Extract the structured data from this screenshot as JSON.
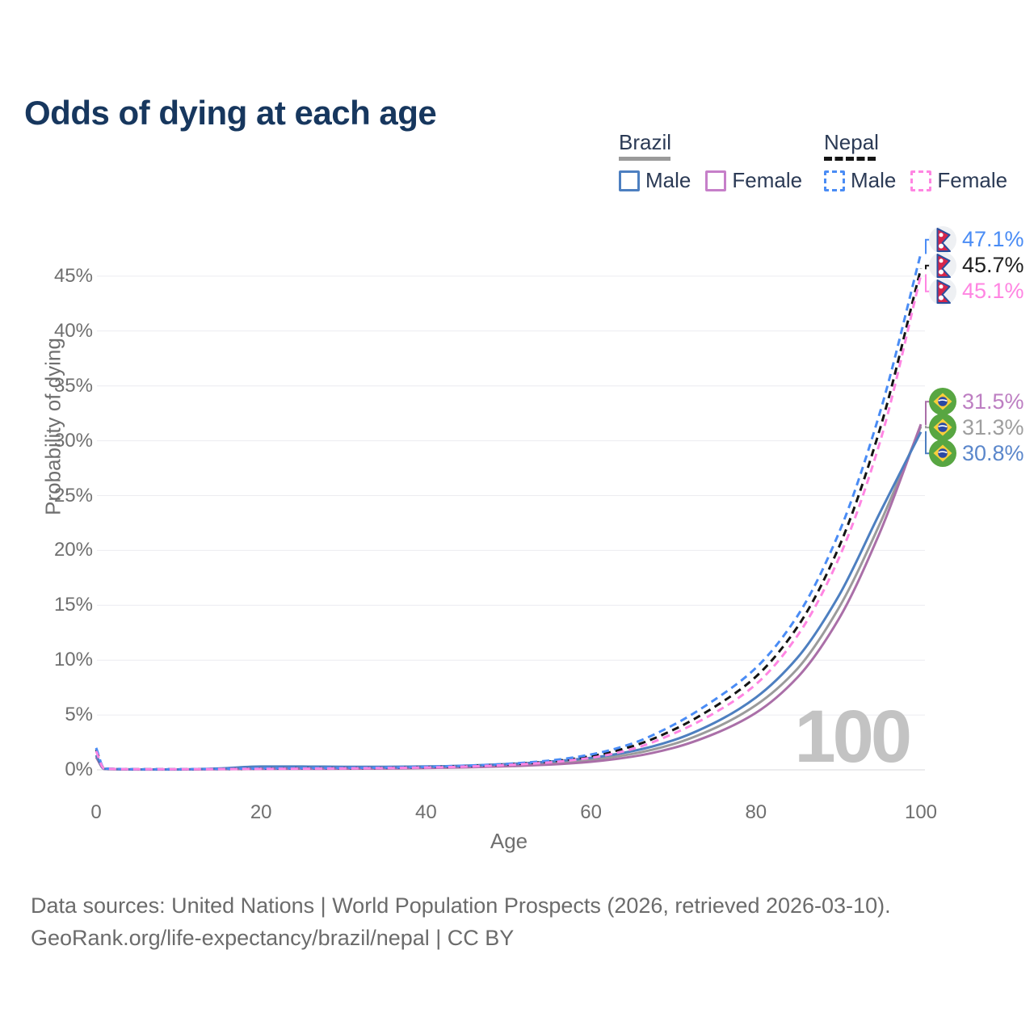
{
  "title": "Odds of dying at each age",
  "legend": {
    "groups": [
      {
        "title": "Brazil",
        "line_style": "solid",
        "underline_color": "#9a9a9a",
        "items": [
          {
            "label": "Male",
            "color": "#4d7fc0",
            "dashed": false
          },
          {
            "label": "Female",
            "color": "#c67fc9",
            "dashed": false
          }
        ]
      },
      {
        "title": "Nepal",
        "line_style": "dashed",
        "underline_color": "#141414",
        "items": [
          {
            "label": "Male",
            "color": "#4a8cf5",
            "dashed": true
          },
          {
            "label": "Female",
            "color": "#ff85e2",
            "dashed": true
          }
        ]
      }
    ]
  },
  "chart_data": {
    "type": "line",
    "title": "Odds of dying at each age",
    "xlabel": "Age",
    "ylabel": "Probability of dying",
    "xlim": [
      0,
      100
    ],
    "ylim_pct": [
      0,
      49
    ],
    "grid": "horizontal",
    "legend_position": "top-right",
    "watermark": "100",
    "xticks": [
      {
        "value": 0,
        "label": "0"
      },
      {
        "value": 20,
        "label": "20"
      },
      {
        "value": 40,
        "label": "40"
      },
      {
        "value": 60,
        "label": "60"
      },
      {
        "value": 80,
        "label": "80"
      },
      {
        "value": 100,
        "label": "100"
      }
    ],
    "yticks": [
      {
        "value": 0,
        "label": "0%"
      },
      {
        "value": 5,
        "label": "5%"
      },
      {
        "value": 10,
        "label": "10%"
      },
      {
        "value": 15,
        "label": "15%"
      },
      {
        "value": 20,
        "label": "20%"
      },
      {
        "value": 25,
        "label": "25%"
      },
      {
        "value": 30,
        "label": "30%"
      },
      {
        "value": 35,
        "label": "35%"
      },
      {
        "value": 40,
        "label": "40%"
      },
      {
        "value": 45,
        "label": "45%"
      }
    ],
    "series": [
      {
        "key": "brazil-total",
        "name": "Brazil",
        "flag": "brazil",
        "dashed": false,
        "color": "#9b9b9b",
        "label_color": "#9e9e9e",
        "end_label": "31.3%",
        "end_value_pct": 31.3,
        "points": [
          [
            0,
            1.25
          ],
          [
            1,
            0.08
          ],
          [
            5,
            0.035
          ],
          [
            10,
            0.035
          ],
          [
            15,
            0.09
          ],
          [
            20,
            0.19
          ],
          [
            25,
            0.19
          ],
          [
            30,
            0.18
          ],
          [
            35,
            0.19
          ],
          [
            40,
            0.23
          ],
          [
            45,
            0.3
          ],
          [
            50,
            0.42
          ],
          [
            55,
            0.61
          ],
          [
            60,
            0.92
          ],
          [
            65,
            1.45
          ],
          [
            70,
            2.35
          ],
          [
            75,
            3.8
          ],
          [
            80,
            5.9
          ],
          [
            85,
            9.2
          ],
          [
            90,
            14.7
          ],
          [
            95,
            22.4
          ],
          [
            100,
            31.3
          ]
        ]
      },
      {
        "key": "brazil-female",
        "name": "Brazil Female",
        "flag": "brazil",
        "dashed": false,
        "color": "#aa6fa8",
        "label_color": "#bd7ec2",
        "end_label": "31.5%",
        "end_value_pct": 31.5,
        "points": [
          [
            0,
            1.15
          ],
          [
            1,
            0.07
          ],
          [
            5,
            0.03
          ],
          [
            10,
            0.03
          ],
          [
            15,
            0.05
          ],
          [
            20,
            0.08
          ],
          [
            25,
            0.09
          ],
          [
            30,
            0.1
          ],
          [
            35,
            0.12
          ],
          [
            40,
            0.16
          ],
          [
            45,
            0.23
          ],
          [
            50,
            0.33
          ],
          [
            55,
            0.48
          ],
          [
            60,
            0.74
          ],
          [
            65,
            1.2
          ],
          [
            70,
            2.0
          ],
          [
            75,
            3.3
          ],
          [
            80,
            5.2
          ],
          [
            85,
            8.4
          ],
          [
            90,
            13.7
          ],
          [
            95,
            21.6
          ],
          [
            100,
            31.5
          ]
        ]
      },
      {
        "key": "brazil-male",
        "name": "Brazil Male",
        "flag": "brazil",
        "dashed": false,
        "color": "#4d7fc0",
        "label_color": "#5b87cb",
        "end_label": "30.8%",
        "end_value_pct": 30.8,
        "points": [
          [
            0,
            1.35
          ],
          [
            1,
            0.09
          ],
          [
            5,
            0.04
          ],
          [
            10,
            0.04
          ],
          [
            15,
            0.13
          ],
          [
            20,
            0.3
          ],
          [
            25,
            0.3
          ],
          [
            30,
            0.28
          ],
          [
            35,
            0.28
          ],
          [
            40,
            0.31
          ],
          [
            45,
            0.39
          ],
          [
            50,
            0.53
          ],
          [
            55,
            0.76
          ],
          [
            60,
            1.1
          ],
          [
            65,
            1.7
          ],
          [
            70,
            2.7
          ],
          [
            75,
            4.3
          ],
          [
            80,
            6.6
          ],
          [
            85,
            10.2
          ],
          [
            90,
            15.8
          ],
          [
            95,
            23.4
          ],
          [
            100,
            30.8
          ]
        ]
      },
      {
        "key": "nepal-total",
        "name": "Nepal",
        "flag": "nepal",
        "dashed": true,
        "color": "#141414",
        "label_color": "#1f1f1f",
        "end_label": "45.7%",
        "end_value_pct": 45.7,
        "points": [
          [
            0,
            1.85
          ],
          [
            1,
            0.11
          ],
          [
            5,
            0.055
          ],
          [
            10,
            0.055
          ],
          [
            15,
            0.08
          ],
          [
            20,
            0.11
          ],
          [
            25,
            0.13
          ],
          [
            30,
            0.15
          ],
          [
            35,
            0.18
          ],
          [
            40,
            0.24
          ],
          [
            45,
            0.34
          ],
          [
            50,
            0.5
          ],
          [
            55,
            0.76
          ],
          [
            60,
            1.25
          ],
          [
            65,
            2.15
          ],
          [
            70,
            3.65
          ],
          [
            75,
            5.75
          ],
          [
            80,
            8.5
          ],
          [
            85,
            13.0
          ],
          [
            90,
            20.2
          ],
          [
            95,
            31.0
          ],
          [
            100,
            45.7
          ]
        ]
      },
      {
        "key": "nepal-male",
        "name": "Nepal Male",
        "flag": "nepal",
        "dashed": true,
        "color": "#4a8cf5",
        "label_color": "#4a8cf5",
        "end_label": "47.1%",
        "end_value_pct": 47.1,
        "points": [
          [
            0,
            2.0
          ],
          [
            1,
            0.12
          ],
          [
            5,
            0.06
          ],
          [
            10,
            0.06
          ],
          [
            15,
            0.09
          ],
          [
            20,
            0.13
          ],
          [
            25,
            0.15
          ],
          [
            30,
            0.17
          ],
          [
            35,
            0.2
          ],
          [
            40,
            0.27
          ],
          [
            45,
            0.38
          ],
          [
            50,
            0.55
          ],
          [
            55,
            0.85
          ],
          [
            60,
            1.4
          ],
          [
            65,
            2.4
          ],
          [
            70,
            4.1
          ],
          [
            75,
            6.4
          ],
          [
            80,
            9.3
          ],
          [
            85,
            14.0
          ],
          [
            90,
            21.5
          ],
          [
            95,
            32.5
          ],
          [
            100,
            47.1
          ]
        ]
      },
      {
        "key": "nepal-female",
        "name": "Nepal Female",
        "flag": "nepal",
        "dashed": true,
        "color": "#ff85e2",
        "label_color": "#ff85e2",
        "end_label": "45.1%",
        "end_value_pct": 45.1,
        "points": [
          [
            0,
            1.7
          ],
          [
            1,
            0.1
          ],
          [
            5,
            0.05
          ],
          [
            10,
            0.05
          ],
          [
            15,
            0.07
          ],
          [
            20,
            0.09
          ],
          [
            25,
            0.11
          ],
          [
            30,
            0.13
          ],
          [
            35,
            0.16
          ],
          [
            40,
            0.21
          ],
          [
            45,
            0.3
          ],
          [
            50,
            0.45
          ],
          [
            55,
            0.68
          ],
          [
            60,
            1.1
          ],
          [
            65,
            1.9
          ],
          [
            70,
            3.3
          ],
          [
            75,
            5.2
          ],
          [
            80,
            7.8
          ],
          [
            85,
            12.2
          ],
          [
            90,
            19.2
          ],
          [
            95,
            29.8
          ],
          [
            100,
            45.1
          ]
        ]
      }
    ]
  },
  "footer": {
    "line1": "Data sources: United Nations | World Population Prospects (2026, retrieved 2026-03-10).",
    "line2": "GeoRank.org/life-expectancy/brazil/nepal | CC BY"
  }
}
